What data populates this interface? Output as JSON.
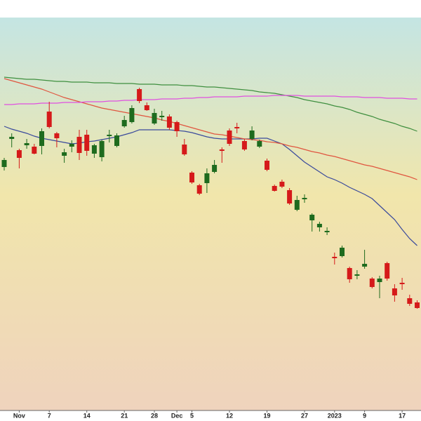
{
  "chart_data": {
    "type": "candlestick",
    "categories": [
      null,
      null,
      "Nov",
      null,
      null,
      null,
      "7",
      null,
      null,
      null,
      null,
      "14",
      null,
      null,
      null,
      null,
      "21",
      null,
      null,
      null,
      "28",
      null,
      null,
      "Dec",
      null,
      "5",
      null,
      null,
      null,
      null,
      "12",
      null,
      null,
      null,
      null,
      "19",
      null,
      null,
      null,
      null,
      "27",
      null,
      null,
      null,
      "2023",
      null,
      null,
      null,
      "9",
      null,
      null,
      null,
      null,
      "17",
      null,
      null
    ],
    "open": [
      347,
      387,
      371,
      378,
      376,
      377,
      426,
      395,
      363,
      376,
      390,
      393,
      366,
      361,
      391,
      377,
      405,
      411,
      458,
      435,
      409,
      418,
      419,
      411,
      379,
      339,
      321,
      324,
      340,
      372,
      399,
      404,
      384,
      387,
      376,
      356,
      320,
      326,
      314,
      286,
      301,
      271,
      261,
      254,
      219,
      220,
      203,
      192,
      205,
      188,
      183,
      210,
      174,
      182,
      160,
      154
    ],
    "high": [
      360,
      395,
      373,
      387,
      380,
      402,
      440,
      397,
      373,
      385,
      400,
      400,
      380,
      386,
      400,
      395,
      420,
      435,
      460,
      439,
      430,
      427,
      422,
      413,
      387,
      341,
      323,
      345,
      357,
      375,
      402,
      410,
      387,
      405,
      386,
      359,
      322,
      329,
      317,
      306,
      308,
      281,
      269,
      261,
      225,
      235,
      205,
      200,
      229,
      190,
      192,
      212,
      180,
      189,
      165,
      157
    ],
    "low": [
      342,
      375,
      345,
      373,
      365,
      365,
      402,
      375,
      353,
      368,
      357,
      363,
      360,
      355,
      382,
      375,
      403,
      409,
      438,
      427,
      407,
      413,
      400,
      390,
      363,
      323,
      307,
      310,
      338,
      353,
      377,
      395,
      370,
      385,
      374,
      341,
      312,
      317,
      293,
      284,
      296,
      255,
      255,
      250,
      208,
      218,
      182,
      187,
      202,
      174,
      160,
      185,
      155,
      172,
      149,
      145
    ],
    "close": [
      357,
      390,
      360,
      381,
      366,
      398,
      404,
      388,
      368,
      380,
      367,
      370,
      378,
      384,
      393,
      392,
      414,
      431,
      441,
      428,
      424,
      420,
      403,
      398,
      365,
      325,
      309,
      338,
      350,
      370,
      380,
      402,
      372,
      399,
      384,
      343,
      313,
      319,
      295,
      300,
      303,
      279,
      266,
      256,
      217,
      232,
      187,
      194,
      209,
      176,
      188,
      188,
      164,
      180,
      152,
      146
    ],
    "up_color": "#1e6b1e",
    "down_color": "#d51a1a",
    "lines": [
      {
        "color": "#3a4a9c",
        "values": [
          405,
          401,
          398,
          395,
          391,
          388,
          386,
          384,
          382,
          380,
          381,
          383,
          384,
          386,
          388,
          390,
          393,
          396,
          400,
          400,
          400,
          400,
          400,
          399,
          398,
          396,
          393,
          390,
          388,
          387,
          387,
          387,
          387,
          387,
          388,
          388,
          384,
          380,
          372,
          363,
          354,
          347,
          340,
          333,
          329,
          324,
          318,
          313,
          308,
          302,
          292,
          282,
          272,
          258,
          245,
          235
        ]
      },
      {
        "color": "#e0553f",
        "values": [
          473,
          470,
          467,
          464,
          461,
          458,
          454,
          450,
          446,
          443,
          440,
          437,
          434,
          431,
          429,
          427,
          425,
          423,
          421,
          419,
          417,
          414,
          412,
          409,
          406,
          403,
          400,
          397,
          394,
          393,
          391,
          389,
          387,
          386,
          385,
          383,
          382,
          380,
          377,
          375,
          372,
          369,
          367,
          364,
          362,
          359,
          356,
          353,
          350,
          348,
          345,
          342,
          339,
          336,
          333,
          329
        ]
      },
      {
        "color": "#3f8f3f",
        "values": [
          475,
          474,
          473,
          472,
          472,
          471,
          470,
          469,
          469,
          468,
          468,
          468,
          467,
          467,
          467,
          466,
          466,
          466,
          465,
          465,
          465,
          464,
          464,
          464,
          463,
          463,
          462,
          461,
          461,
          460,
          459,
          458,
          457,
          456,
          454,
          453,
          452,
          450,
          448,
          446,
          443,
          441,
          439,
          437,
          434,
          432,
          429,
          425,
          422,
          419,
          415,
          412,
          409,
          405,
          402,
          398
        ]
      },
      {
        "color": "#e050e0",
        "values": [
          436,
          436,
          437,
          437,
          437,
          438,
          438,
          438,
          439,
          439,
          439,
          440,
          440,
          440,
          441,
          441,
          442,
          442,
          443,
          443,
          443,
          444,
          444,
          444,
          445,
          445,
          446,
          446,
          447,
          447,
          447,
          447,
          448,
          448,
          448,
          448,
          449,
          449,
          449,
          449,
          448,
          448,
          448,
          448,
          448,
          447,
          447,
          447,
          446,
          446,
          446,
          445,
          445,
          445,
          444,
          444
        ]
      }
    ],
    "ylim": [
      0,
      560
    ]
  }
}
